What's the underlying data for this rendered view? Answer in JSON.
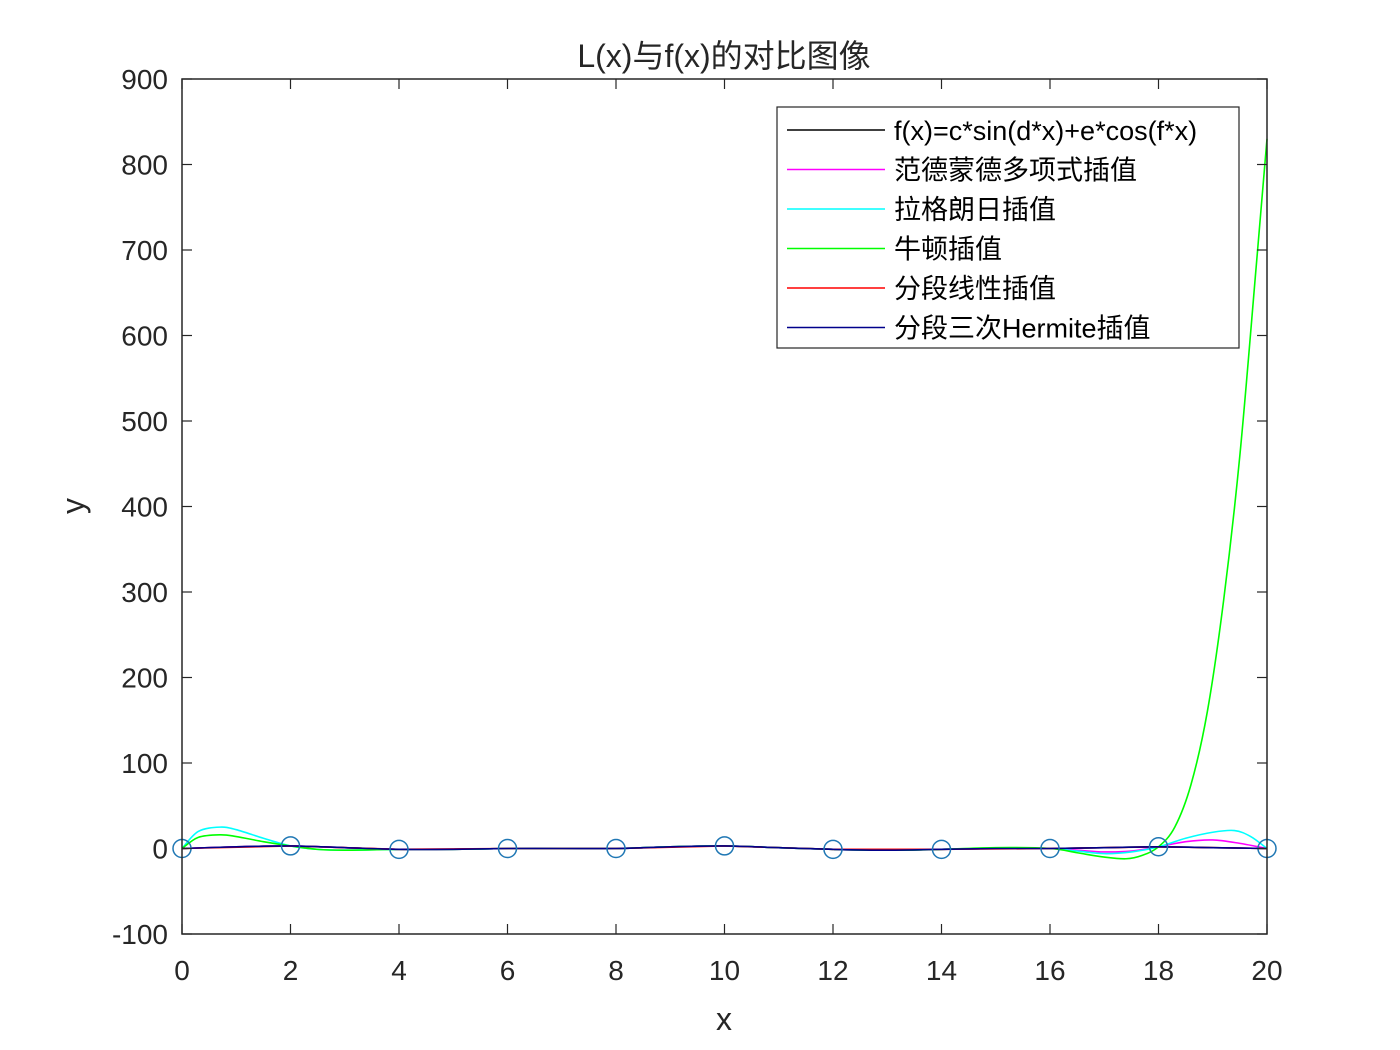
{
  "chart_data": {
    "type": "line",
    "title": "L(x)与f(x)的对比图像",
    "xlabel": "x",
    "ylabel": "y",
    "xlim": [
      0,
      20
    ],
    "ylim": [
      -100,
      900
    ],
    "x_ticks": [
      0,
      2,
      4,
      6,
      8,
      10,
      12,
      14,
      16,
      18,
      20
    ],
    "y_ticks": [
      -100,
      0,
      100,
      200,
      300,
      400,
      500,
      600,
      700,
      800,
      900
    ],
    "grid": false,
    "legend_position": "top-right",
    "node_markers": {
      "name": "",
      "color": "#1f77b4",
      "marker": "circle",
      "x": [
        0,
        2,
        4,
        6,
        8,
        10,
        12,
        14,
        16,
        18,
        20
      ],
      "y": [
        0,
        3,
        -1,
        0,
        0,
        3,
        -1,
        -1,
        0,
        2,
        0
      ]
    },
    "series": [
      {
        "name": "f(x)=c*sin(d*x)+e*cos(f*x)",
        "color": "#000000",
        "x": [
          0,
          1,
          2,
          3,
          4,
          5,
          6,
          7,
          8,
          9,
          10,
          11,
          12,
          13,
          14,
          15,
          16,
          17,
          18,
          19,
          20
        ],
        "y": [
          0,
          2,
          3,
          1,
          -1,
          -1,
          0,
          0,
          0,
          2,
          3,
          1,
          -1,
          -2,
          -1,
          0,
          0,
          1,
          2,
          1,
          0
        ]
      },
      {
        "name": "范德蒙德多项式插值",
        "color": "#ff00ff",
        "x": [
          0,
          1,
          2,
          3,
          4,
          5,
          6,
          7,
          8,
          9,
          10,
          11,
          12,
          13,
          14,
          15,
          16,
          16.5,
          17,
          17.5,
          18,
          18.5,
          19,
          19.5,
          20
        ],
        "y": [
          0,
          2,
          3,
          1,
          -1,
          -1,
          0,
          0,
          0,
          2,
          3,
          1,
          -1,
          -2,
          -1,
          0,
          0,
          -2,
          -4,
          -3,
          2,
          8,
          10,
          6,
          0
        ]
      },
      {
        "name": "拉格朗日插值",
        "color": "#00ffff",
        "x": [
          0,
          0.3,
          0.7,
          1,
          1.5,
          2,
          2.5,
          3,
          4,
          5,
          6,
          7,
          8,
          9,
          10,
          11,
          12,
          13,
          14,
          15,
          16,
          16.5,
          17,
          17.5,
          18,
          18.5,
          19,
          19.4,
          19.7,
          20
        ],
        "y": [
          0,
          20,
          25,
          22,
          12,
          3,
          -1,
          -2,
          -1,
          -1,
          0,
          0,
          0,
          2,
          3,
          1,
          -1,
          -2,
          -1,
          0,
          0,
          -3,
          -6,
          -4,
          2,
          12,
          19,
          21,
          14,
          0
        ]
      },
      {
        "name": "牛顿插值",
        "color": "#00ff00",
        "x": [
          0,
          0.3,
          0.7,
          1,
          1.5,
          2,
          2.5,
          3,
          4,
          5,
          6,
          7,
          8,
          9,
          10,
          11,
          12,
          13,
          14,
          15,
          16,
          16.5,
          17,
          17.4,
          17.7,
          18,
          18.3,
          18.6,
          18.9,
          19.2,
          19.5,
          19.8,
          20
        ],
        "y": [
          0,
          13,
          16,
          14,
          8,
          3,
          -1,
          -2,
          -1,
          -1,
          0,
          0,
          0,
          2,
          3,
          1,
          -1,
          -2,
          -1,
          1,
          0,
          -5,
          -10,
          -12,
          -8,
          2,
          25,
          75,
          160,
          290,
          460,
          680,
          830
        ]
      },
      {
        "name": "分段线性插值",
        "color": "#ff0000",
        "x": [
          0,
          2,
          4,
          6,
          8,
          10,
          12,
          14,
          16,
          18,
          20
        ],
        "y": [
          0,
          3,
          -1,
          0,
          0,
          3,
          -1,
          -1,
          0,
          2,
          0
        ]
      },
      {
        "name": "分段三次Hermite插值",
        "color": "#00008b",
        "x": [
          0,
          1,
          2,
          3,
          4,
          5,
          6,
          7,
          8,
          9,
          10,
          11,
          12,
          13,
          14,
          15,
          16,
          17,
          18,
          19,
          20
        ],
        "y": [
          0,
          2,
          3,
          1,
          -1,
          -1,
          0,
          0,
          0,
          2,
          3,
          1,
          -1,
          -2,
          -1,
          0,
          0,
          1,
          2,
          1,
          0
        ]
      }
    ]
  }
}
